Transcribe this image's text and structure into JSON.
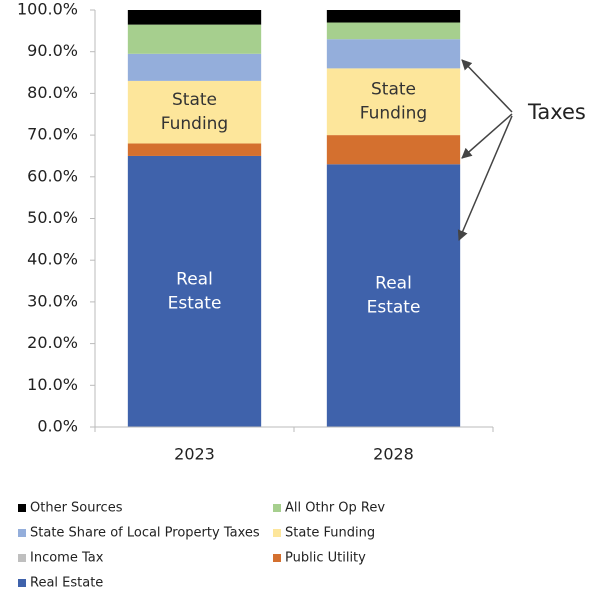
{
  "chart_data": {
    "type": "stacked_bar",
    "categories": [
      "2023",
      "2028"
    ],
    "series": [
      {
        "name": "Real Estate",
        "color": "#3f62ab",
        "values": [
          65,
          63
        ]
      },
      {
        "name": "Public Utility",
        "color": "#d4702f",
        "values": [
          3,
          7
        ]
      },
      {
        "name": "Income Tax",
        "color": "#bfbfbf",
        "values": [
          0,
          0
        ]
      },
      {
        "name": "State Funding",
        "color": "#fde69b",
        "values": [
          15,
          16
        ]
      },
      {
        "name": "State Share of Local Property Taxes",
        "color": "#94aedb",
        "values": [
          6.5,
          7
        ]
      },
      {
        "name": "All Othr Op Rev",
        "color": "#a6cf8e",
        "values": [
          7,
          4
        ]
      },
      {
        "name": "Other Sources",
        "color": "#000000",
        "values": [
          3.5,
          3
        ]
      }
    ],
    "ylim": [
      0,
      100
    ],
    "yticks": [
      {
        "value": 0,
        "label": "0.0%"
      },
      {
        "value": 10,
        "label": "10.0%"
      },
      {
        "value": 20,
        "label": "20.0%"
      },
      {
        "value": 30,
        "label": "30.0%"
      },
      {
        "value": 40,
        "label": "40.0%"
      },
      {
        "value": 50,
        "label": "50.0%"
      },
      {
        "value": 60,
        "label": "60.0%"
      },
      {
        "value": 70,
        "label": "70.0%"
      },
      {
        "value": 80,
        "label": "80.0%"
      },
      {
        "value": 90,
        "label": "90.0%"
      },
      {
        "value": 100,
        "label": "100.0%"
      }
    ],
    "segment_labels": [
      "Real Estate",
      "State Funding"
    ],
    "annotation": "Taxes",
    "grid": false,
    "legend": "bottom"
  }
}
